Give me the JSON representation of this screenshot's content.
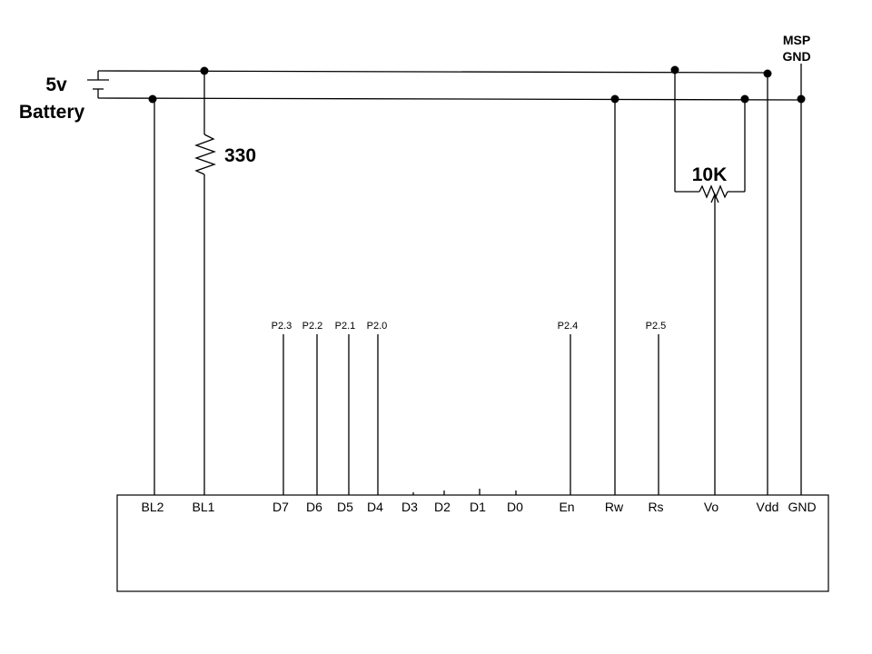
{
  "battery": {
    "voltage": "5v",
    "label": "Battery"
  },
  "resistor": {
    "value": "330"
  },
  "potentiometer": {
    "value": "10K"
  },
  "msp_gnd": {
    "line1": "MSP",
    "line2": "GND"
  },
  "lcd_pins": [
    {
      "id": "bl2",
      "label": "BL2"
    },
    {
      "id": "bl1",
      "label": "BL1"
    },
    {
      "id": "d7",
      "label": "D7"
    },
    {
      "id": "d6",
      "label": "D6"
    },
    {
      "id": "d5",
      "label": "D5"
    },
    {
      "id": "d4",
      "label": "D4"
    },
    {
      "id": "d3",
      "label": "D3"
    },
    {
      "id": "d2",
      "label": "D2"
    },
    {
      "id": "d1",
      "label": "D1"
    },
    {
      "id": "d0",
      "label": "D0"
    },
    {
      "id": "en",
      "label": "En"
    },
    {
      "id": "rw",
      "label": "Rw"
    },
    {
      "id": "rs",
      "label": "Rs"
    },
    {
      "id": "vo",
      "label": "Vo"
    },
    {
      "id": "vdd",
      "label": "Vdd"
    },
    {
      "id": "gnd",
      "label": "GND"
    }
  ],
  "port_labels": [
    {
      "pin": "d7",
      "label": "P2.3"
    },
    {
      "pin": "d6",
      "label": "P2.2"
    },
    {
      "pin": "d5",
      "label": "P2.1"
    },
    {
      "pin": "d4",
      "label": "P2.0"
    },
    {
      "pin": "en",
      "label": "P2.4"
    },
    {
      "pin": "rs",
      "label": "P2.5"
    }
  ]
}
